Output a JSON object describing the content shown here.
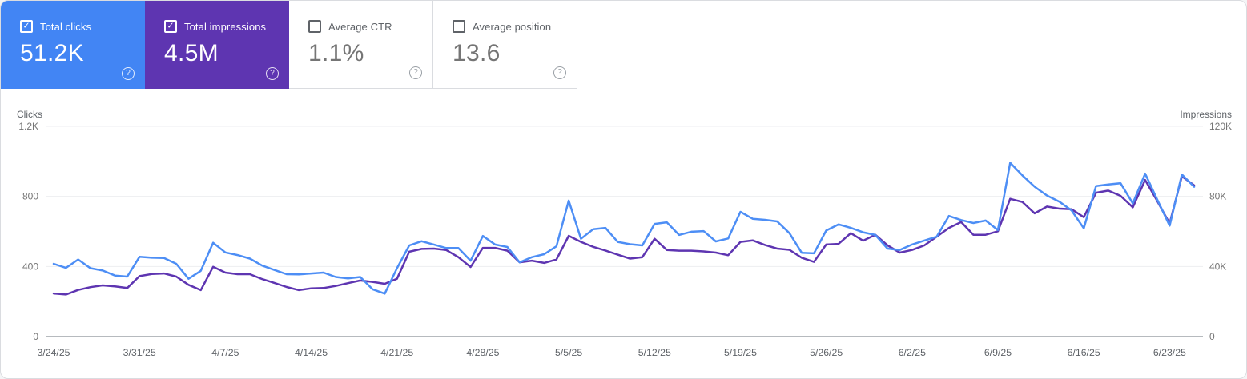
{
  "cards": [
    {
      "label": "Total clicks",
      "value": "51.2K",
      "selected": true,
      "color": "#4285f4"
    },
    {
      "label": "Total impressions",
      "value": "4.5M",
      "selected": true,
      "color": "#5e35b1"
    },
    {
      "label": "Average CTR",
      "value": "1.1%",
      "selected": false
    },
    {
      "label": "Average position",
      "value": "13.6",
      "selected": false
    }
  ],
  "help_icon_glyph": "?",
  "checkmark_glyph": "✓",
  "chart_data": {
    "type": "line",
    "n_points": 94,
    "x_start_date": "3/24/25",
    "x_tick_labels": [
      "3/24/25",
      "3/31/25",
      "4/7/25",
      "4/14/25",
      "4/21/25",
      "4/28/25",
      "5/5/25",
      "5/12/25",
      "5/19/25",
      "5/26/25",
      "6/2/25",
      "6/9/25",
      "6/16/25",
      "6/23/25"
    ],
    "x_tick_positions": [
      0,
      7,
      14,
      21,
      28,
      35,
      42,
      49,
      56,
      63,
      70,
      77,
      84,
      91
    ],
    "grid": true,
    "legend": "none",
    "left_axis": {
      "title": "Clicks",
      "range": [
        0,
        1200
      ],
      "ticks": [
        {
          "label": "0",
          "value": 0
        },
        {
          "label": "400",
          "value": 400
        },
        {
          "label": "800",
          "value": 800
        },
        {
          "label": "1.2K",
          "value": 1200
        }
      ]
    },
    "right_axis": {
      "title": "Impressions",
      "range": [
        0,
        120000
      ],
      "ticks": [
        {
          "label": "0",
          "value": 0
        },
        {
          "label": "40K",
          "value": 40000
        },
        {
          "label": "80K",
          "value": 80000
        },
        {
          "label": "120K",
          "value": 120000
        }
      ]
    },
    "series": [
      {
        "name": "Total clicks",
        "axis": "left",
        "color": "#4d8ef5",
        "values": [
          415,
          392,
          440,
          390,
          377,
          348,
          342,
          455,
          450,
          448,
          415,
          330,
          375,
          535,
          480,
          465,
          445,
          405,
          380,
          356,
          355,
          360,
          365,
          340,
          332,
          340,
          270,
          245,
          390,
          520,
          544,
          525,
          505,
          505,
          433,
          574,
          525,
          511,
          424,
          453,
          470,
          515,
          776,
          558,
          613,
          620,
          540,
          527,
          520,
          643,
          652,
          580,
          598,
          602,
          543,
          560,
          712,
          672,
          666,
          657,
          590,
          478,
          475,
          605,
          640,
          620,
          595,
          580,
          502,
          494,
          525,
          548,
          570,
          688,
          665,
          648,
          662,
          608,
          992,
          920,
          855,
          805,
          770,
          720,
          618,
          859,
          868,
          875,
          760,
          930,
          780,
          633,
          925,
          855
        ]
      },
      {
        "name": "Total impressions",
        "axis": "right",
        "color": "#5e35b1",
        "values": [
          24600,
          24000,
          26600,
          28200,
          29200,
          28600,
          27700,
          34500,
          35700,
          36000,
          34200,
          29500,
          26500,
          39800,
          36500,
          35600,
          35600,
          32800,
          30600,
          28300,
          26500,
          27500,
          27700,
          28900,
          30500,
          32000,
          31200,
          30100,
          33000,
          48400,
          50000,
          50200,
          49400,
          45300,
          39700,
          50600,
          50600,
          49000,
          42400,
          43300,
          42000,
          44000,
          57500,
          54000,
          51200,
          49100,
          46700,
          44500,
          45300,
          55800,
          49400,
          49000,
          49000,
          48600,
          47900,
          46400,
          54000,
          54900,
          52300,
          50200,
          49500,
          45000,
          42600,
          52500,
          52900,
          59000,
          54700,
          58100,
          52000,
          47900,
          49400,
          52000,
          57000,
          62000,
          65400,
          58100,
          58100,
          60100,
          78600,
          76800,
          70300,
          74200,
          73000,
          72700,
          68100,
          82100,
          83300,
          80300,
          73800,
          89400,
          77200,
          64500,
          91500,
          86300
        ]
      }
    ]
  }
}
